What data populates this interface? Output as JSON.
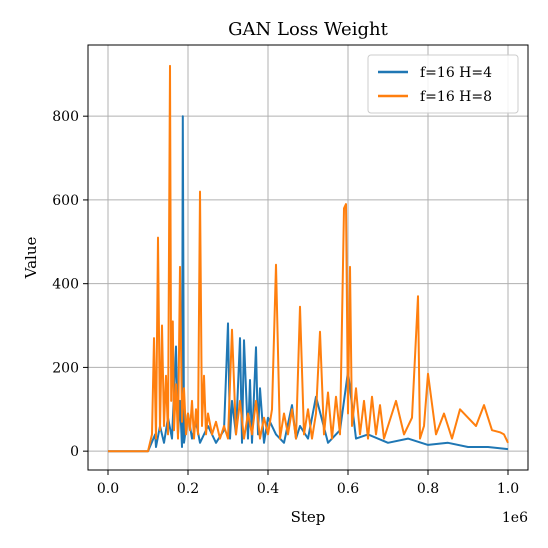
{
  "chart_data": {
    "type": "line",
    "title": "GAN Loss Weight",
    "xlabel": "Step",
    "ylabel": "Value",
    "x_offset_label": "1e6",
    "xlim": [
      -0.05,
      1.05
    ],
    "ylim": [
      -45,
      970
    ],
    "x_ticks": [
      0.0,
      0.2,
      0.4,
      0.6,
      0.8,
      1.0
    ],
    "x_tick_labels": [
      "0.0",
      "0.2",
      "0.4",
      "0.6",
      "0.8",
      "1.0"
    ],
    "y_ticks": [
      0,
      200,
      400,
      600,
      800
    ],
    "y_tick_labels": [
      "0",
      "200",
      "400",
      "600",
      "800"
    ],
    "grid": true,
    "legend_position": "top-right",
    "series": [
      {
        "name": "f=16 H=4",
        "color": "#1f77b4",
        "x": [
          0.0,
          0.05,
          0.1,
          0.118,
          0.12,
          0.13,
          0.14,
          0.15,
          0.16,
          0.17,
          0.175,
          0.18,
          0.185,
          0.187,
          0.19,
          0.2,
          0.21,
          0.22,
          0.23,
          0.25,
          0.27,
          0.29,
          0.3,
          0.305,
          0.31,
          0.32,
          0.33,
          0.335,
          0.34,
          0.35,
          0.355,
          0.36,
          0.37,
          0.375,
          0.38,
          0.39,
          0.4,
          0.42,
          0.44,
          0.46,
          0.47,
          0.48,
          0.5,
          0.52,
          0.55,
          0.58,
          0.6,
          0.62,
          0.65,
          0.7,
          0.75,
          0.8,
          0.85,
          0.9,
          0.95,
          1.0
        ],
        "y": [
          0,
          0,
          0,
          40,
          10,
          60,
          20,
          80,
          30,
          250,
          40,
          120,
          10,
          800,
          20,
          90,
          30,
          70,
          20,
          60,
          20,
          50,
          305,
          30,
          120,
          40,
          270,
          20,
          265,
          30,
          170,
          20,
          248,
          40,
          150,
          20,
          80,
          40,
          20,
          110,
          30,
          60,
          30,
          130,
          20,
          50,
          190,
          30,
          40,
          20,
          30,
          15,
          20,
          10,
          10,
          5
        ]
      },
      {
        "name": "f=16 H=8",
        "color": "#ff7f0e",
        "x": [
          0.0,
          0.05,
          0.1,
          0.11,
          0.115,
          0.12,
          0.125,
          0.13,
          0.135,
          0.14,
          0.145,
          0.15,
          0.155,
          0.158,
          0.162,
          0.165,
          0.17,
          0.175,
          0.18,
          0.185,
          0.19,
          0.195,
          0.2,
          0.205,
          0.21,
          0.215,
          0.22,
          0.225,
          0.23,
          0.235,
          0.24,
          0.245,
          0.25,
          0.26,
          0.27,
          0.28,
          0.29,
          0.3,
          0.31,
          0.32,
          0.33,
          0.34,
          0.35,
          0.36,
          0.37,
          0.38,
          0.39,
          0.4,
          0.41,
          0.42,
          0.43,
          0.44,
          0.45,
          0.46,
          0.47,
          0.48,
          0.49,
          0.5,
          0.51,
          0.52,
          0.53,
          0.54,
          0.55,
          0.56,
          0.57,
          0.58,
          0.59,
          0.595,
          0.6,
          0.605,
          0.61,
          0.62,
          0.63,
          0.64,
          0.65,
          0.66,
          0.67,
          0.68,
          0.69,
          0.7,
          0.72,
          0.74,
          0.76,
          0.775,
          0.78,
          0.79,
          0.8,
          0.82,
          0.84,
          0.86,
          0.88,
          0.9,
          0.92,
          0.94,
          0.96,
          0.98,
          0.99,
          1.0
        ],
        "y": [
          0,
          0,
          0,
          40,
          270,
          30,
          510,
          50,
          300,
          60,
          180,
          40,
          920,
          120,
          310,
          50,
          160,
          30,
          440,
          70,
          150,
          40,
          90,
          50,
          120,
          30,
          100,
          40,
          620,
          60,
          180,
          40,
          90,
          40,
          70,
          30,
          60,
          30,
          290,
          40,
          120,
          30,
          90,
          40,
          120,
          30,
          80,
          40,
          100,
          445,
          30,
          90,
          40,
          100,
          30,
          345,
          40,
          100,
          30,
          90,
          285,
          40,
          140,
          30,
          130,
          40,
          580,
          590,
          90,
          440,
          60,
          150,
          40,
          120,
          30,
          130,
          40,
          110,
          30,
          60,
          120,
          40,
          80,
          370,
          30,
          60,
          185,
          40,
          90,
          30,
          100,
          80,
          60,
          110,
          50,
          45,
          40,
          20
        ]
      }
    ]
  }
}
